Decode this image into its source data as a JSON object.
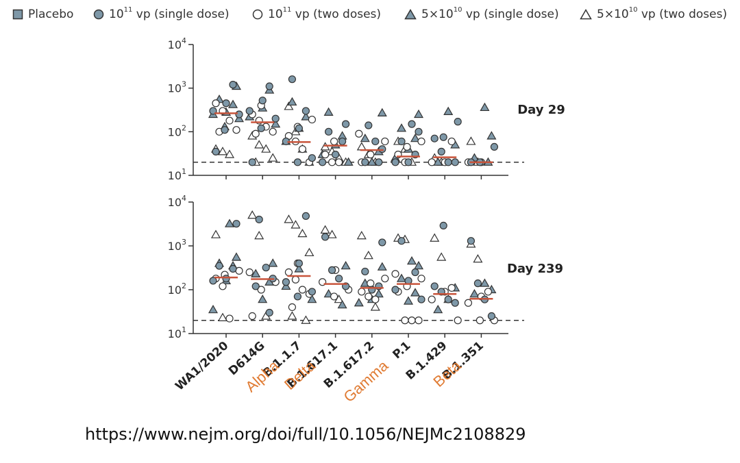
{
  "legend": {
    "placebo": "Placebo",
    "single_high": {
      "base": "10",
      "exp": "11",
      "suffix": " vp (single dose)"
    },
    "two_high": {
      "base": "10",
      "exp": "11",
      "suffix": " vp (two doses)"
    },
    "single_low": {
      "base": "5×10",
      "exp": "10",
      "suffix": " vp (single dose)"
    },
    "two_low": {
      "base": "5×10",
      "exp": "10",
      "suffix": " vp (two doses)"
    }
  },
  "source_url": "https://www.nejm.org/doi/full/10.1056/NEJMc2108829",
  "colors": {
    "fill": "#7e98a8",
    "median": "#c8543b",
    "variant_label": "#e07b33",
    "axis": "#333333"
  },
  "chart_data": [
    {
      "type": "scatter",
      "panel_label": "Day 29",
      "yscale": "log",
      "ylim": [
        10,
        10000
      ],
      "yticks": [
        "10^1",
        "10^2",
        "10^3",
        "10^4"
      ],
      "lower_limit": 20,
      "categories": [
        "WA1/2020",
        "D614G",
        "B.1.1.7",
        "B.1.617.1",
        "B.1.617.2",
        "P.1",
        "B.1.429",
        "B.1.351"
      ],
      "variant_names": [
        "",
        "",
        "Alpha",
        "Delta",
        "",
        "Gamma",
        "",
        "Beta"
      ],
      "medians": [
        265,
        165,
        58,
        48,
        38,
        27,
        26,
        20
      ],
      "points": {
        "single_high": [
          [
            1200,
            450,
            300,
            250,
            110,
            35
          ],
          [
            1100,
            520,
            300,
            200,
            120,
            20
          ],
          [
            1600,
            300,
            120,
            60,
            25,
            20
          ],
          [
            150,
            100,
            60,
            30,
            20
          ],
          [
            140,
            60,
            40,
            20,
            20
          ],
          [
            150,
            100,
            60,
            30,
            20,
            20
          ],
          [
            170,
            75,
            70,
            35,
            20,
            20
          ],
          [
            45,
            20,
            20
          ]
        ],
        "two_high": [
          [
            450,
            300,
            180,
            110,
            100
          ],
          [
            400,
            250,
            180,
            130,
            100,
            90
          ],
          [
            190,
            130,
            80,
            60,
            40,
            20
          ],
          [
            60,
            30,
            20,
            20
          ],
          [
            90,
            60,
            30,
            20
          ],
          [
            60,
            45,
            30,
            20
          ],
          [
            60,
            20,
            20
          ],
          [
            20,
            20
          ]
        ],
        "single_low": [
          [
            1100,
            550,
            420,
            280,
            250,
            200,
            130
          ],
          [
            900,
            350,
            220,
            150
          ],
          [
            480,
            220,
            120,
            60
          ],
          [
            280,
            80,
            50,
            30,
            20
          ],
          [
            270,
            70,
            35,
            20
          ],
          [
            250,
            120,
            70,
            40,
            25
          ],
          [
            290,
            50,
            20
          ],
          [
            360,
            80,
            25,
            20
          ]
        ],
        "two_low": [
          [
            40,
            35,
            30
          ],
          [
            80,
            50,
            40,
            25,
            20
          ],
          [
            380,
            100,
            40,
            20
          ],
          [
            45,
            35,
            25,
            20
          ],
          [
            45,
            30,
            20
          ],
          [
            60,
            40,
            20
          ],
          [
            25,
            20
          ],
          [
            60,
            20
          ]
        ]
      }
    },
    {
      "type": "scatter",
      "panel_label": "Day 239",
      "yscale": "log",
      "ylim": [
        10,
        10000
      ],
      "yticks": [
        "10^1",
        "10^2",
        "10^3",
        "10^4"
      ],
      "lower_limit": 20,
      "categories": [
        "WA1/2020",
        "D614G",
        "B.1.1.7",
        "B.1.617.1",
        "B.1.617.2",
        "P.1",
        "B.1.429",
        "B.1.351"
      ],
      "variant_names": [
        "",
        "",
        "Alpha",
        "Delta",
        "",
        "Gamma",
        "",
        "Beta"
      ],
      "medians": [
        190,
        175,
        205,
        135,
        110,
        135,
        80,
        62
      ],
      "points": {
        "single_high": [
          [
            3200,
            350,
            300,
            180,
            160
          ],
          [
            4000,
            320,
            180,
            120,
            30
          ],
          [
            4800,
            400,
            150,
            90,
            70
          ],
          [
            1600,
            280,
            180,
            120
          ],
          [
            1200,
            260,
            120,
            100
          ],
          [
            1300,
            250,
            160,
            100,
            60
          ],
          [
            2900,
            120,
            90,
            60,
            50
          ],
          [
            1300,
            140,
            60,
            25
          ]
        ],
        "two_high": [
          [
            270,
            220,
            180,
            120,
            22
          ],
          [
            250,
            150,
            100,
            25
          ],
          [
            400,
            250,
            170,
            100,
            80,
            40
          ],
          [
            280,
            150,
            100,
            70
          ],
          [
            180,
            140,
            90,
            70,
            60
          ],
          [
            230,
            180,
            120,
            90,
            20,
            20,
            20
          ],
          [
            110,
            90,
            60,
            20
          ],
          [
            90,
            70,
            50,
            20,
            20
          ]
        ],
        "single_low": [
          [
            3200,
            550,
            400,
            350,
            160,
            35
          ],
          [
            400,
            230,
            150,
            60
          ],
          [
            300,
            120,
            60
          ],
          [
            350,
            80,
            45
          ],
          [
            330,
            140,
            80,
            60,
            50
          ],
          [
            450,
            350,
            180,
            85,
            55
          ],
          [
            110,
            35
          ],
          [
            140,
            100,
            80
          ]
        ],
        "two_low": [
          [
            1800,
            23
          ],
          [
            5000,
            1700,
            25
          ],
          [
            4000,
            3000,
            1900,
            700,
            25,
            20
          ],
          [
            2300,
            1800,
            60
          ],
          [
            1700,
            600,
            40
          ],
          [
            1500,
            1400
          ],
          [
            1500,
            550,
            60
          ],
          [
            1100,
            500
          ]
        ]
      }
    }
  ]
}
